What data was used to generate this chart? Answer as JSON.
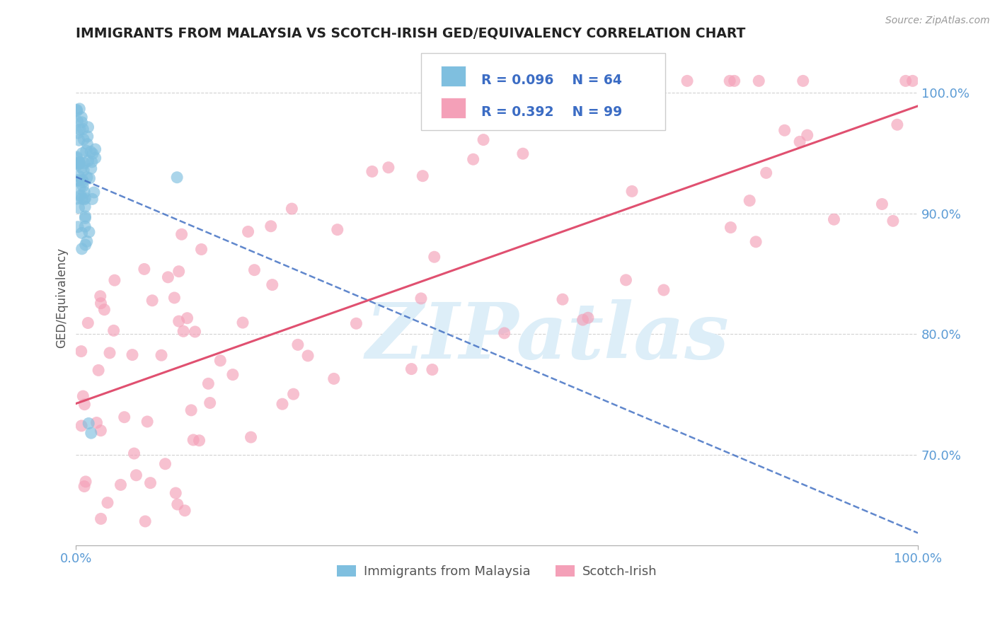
{
  "title": "IMMIGRANTS FROM MALAYSIA VS SCOTCH-IRISH GED/EQUIVALENCY CORRELATION CHART",
  "source": "Source: ZipAtlas.com",
  "ylabel": "GED/Equivalency",
  "legend_label1": "Immigrants from Malaysia",
  "legend_label2": "Scotch-Irish",
  "R1": 0.096,
  "N1": 64,
  "R2": 0.392,
  "N2": 99,
  "color1": "#7fbfdf",
  "color2": "#f4a0b8",
  "line_color1": "#4472c4",
  "line_color2": "#e05070",
  "title_color": "#222222",
  "axis_label_color": "#5b9bd5",
  "background_color": "#ffffff",
  "grid_color": "#c0c0c0",
  "watermark": "ZIPatlas",
  "watermark_color": "#ddeef8",
  "xlim": [
    0.0,
    1.0
  ],
  "ylim": [
    0.625,
    1.035
  ],
  "yticks": [
    0.7,
    0.8,
    0.9,
    1.0
  ],
  "ytick_labels": [
    "70.0%",
    "80.0%",
    "90.0%",
    "100.0%"
  ],
  "xticks": [
    0.0,
    1.0
  ],
  "xtick_labels": [
    "0.0%",
    "100.0%"
  ]
}
